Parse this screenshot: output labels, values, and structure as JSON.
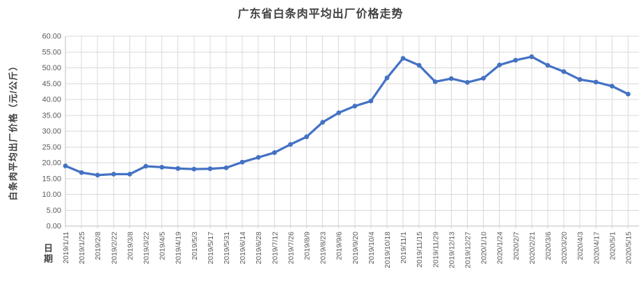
{
  "chart_data": {
    "type": "line",
    "title": "广东省白条肉平均出厂价格走势",
    "ylabel": "白条肉平均出厂价格（元/公斤）",
    "xlabel": "日期",
    "categories": [
      "2019/1/11",
      "2019/1/25",
      "2019/2/8",
      "2019/2/22",
      "2019/3/8",
      "2019/3/22",
      "2019/4/5",
      "2019/4/19",
      "2019/5/3",
      "2019/5/17",
      "2019/5/31",
      "2019/6/14",
      "2019/6/28",
      "2019/7/12",
      "2019/7/26",
      "2019/8/9",
      "2019/8/23",
      "2019/9/6",
      "2019/9/20",
      "2019/10/4",
      "2019/10/18",
      "2019/11/1",
      "2019/11/15",
      "2019/11/29",
      "2019/12/13",
      "2019/12/27",
      "2020/1/10",
      "2020/1/24",
      "2020/2/7",
      "2020/2/21",
      "2020/3/6",
      "2020/3/20",
      "2020/4/3",
      "2020/4/17",
      "2020/5/1",
      "2020/5/15"
    ],
    "values": [
      19.0,
      16.9,
      16.1,
      16.4,
      16.4,
      18.9,
      18.6,
      18.2,
      18.0,
      18.1,
      18.4,
      20.2,
      21.7,
      23.2,
      25.8,
      28.2,
      32.8,
      35.8,
      37.9,
      39.5,
      46.8,
      53.0,
      50.8,
      45.6,
      46.6,
      45.4,
      46.7,
      50.9,
      52.4,
      53.5,
      50.8,
      48.8,
      46.3,
      45.5,
      44.2,
      41.7
    ],
    "ylim": [
      0,
      60
    ],
    "ytick_step": 5,
    "ytick_labels": [
      "60.00",
      "55.00",
      "50.00",
      "45.00",
      "40.00",
      "35.00",
      "30.00",
      "25.00",
      "20.00",
      "15.00",
      "10.00",
      "5.00",
      "0.00"
    ],
    "grid": true,
    "legend": "none",
    "colors": {
      "line": "#4472C4",
      "marker": "#4472C4",
      "gridline": "#D9D9D9",
      "axis": "#BFBFBF",
      "tick_text": "#595959",
      "title_text": "#404040"
    }
  }
}
